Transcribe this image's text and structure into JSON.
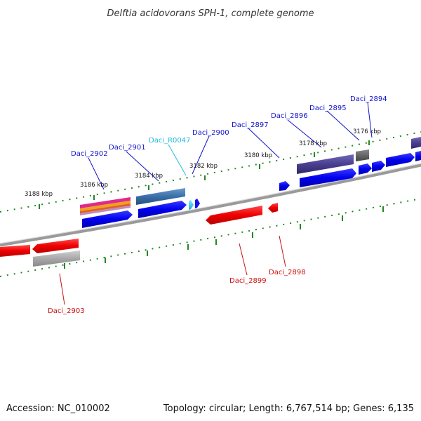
{
  "title": "Delftia acidovorans SPH-1, complete genome",
  "footer": {
    "accession": "Accession: NC_010002",
    "summary": "Topology: circular; Length: 6,767,514 bp; Genes: 6,135"
  },
  "kbp_labels": [
    "3188 kbp",
    "3186 kbp",
    "3184 kbp",
    "3182 kbp",
    "3180 kbp",
    "3178 kbp",
    "3176 kbp"
  ],
  "gene_labels": {
    "daci_2902": "Daci_2902",
    "daci_2901": "Daci_2901",
    "daci_r0047": "Daci_R0047",
    "daci_2900": "Daci_2900",
    "daci_2897": "Daci_2897",
    "daci_2896": "Daci_2896",
    "daci_2895": "Daci_2895",
    "daci_2894": "Daci_2894",
    "daci_2899": "Daci_2899",
    "daci_2898": "Daci_2898",
    "daci_2903": "Daci_2903"
  },
  "colors": {
    "forward_strand": "#1111ee",
    "reverse_strand": "#ee1111",
    "rna": "#22bbdd",
    "tick": "#228822",
    "backbone": "#888888"
  }
}
